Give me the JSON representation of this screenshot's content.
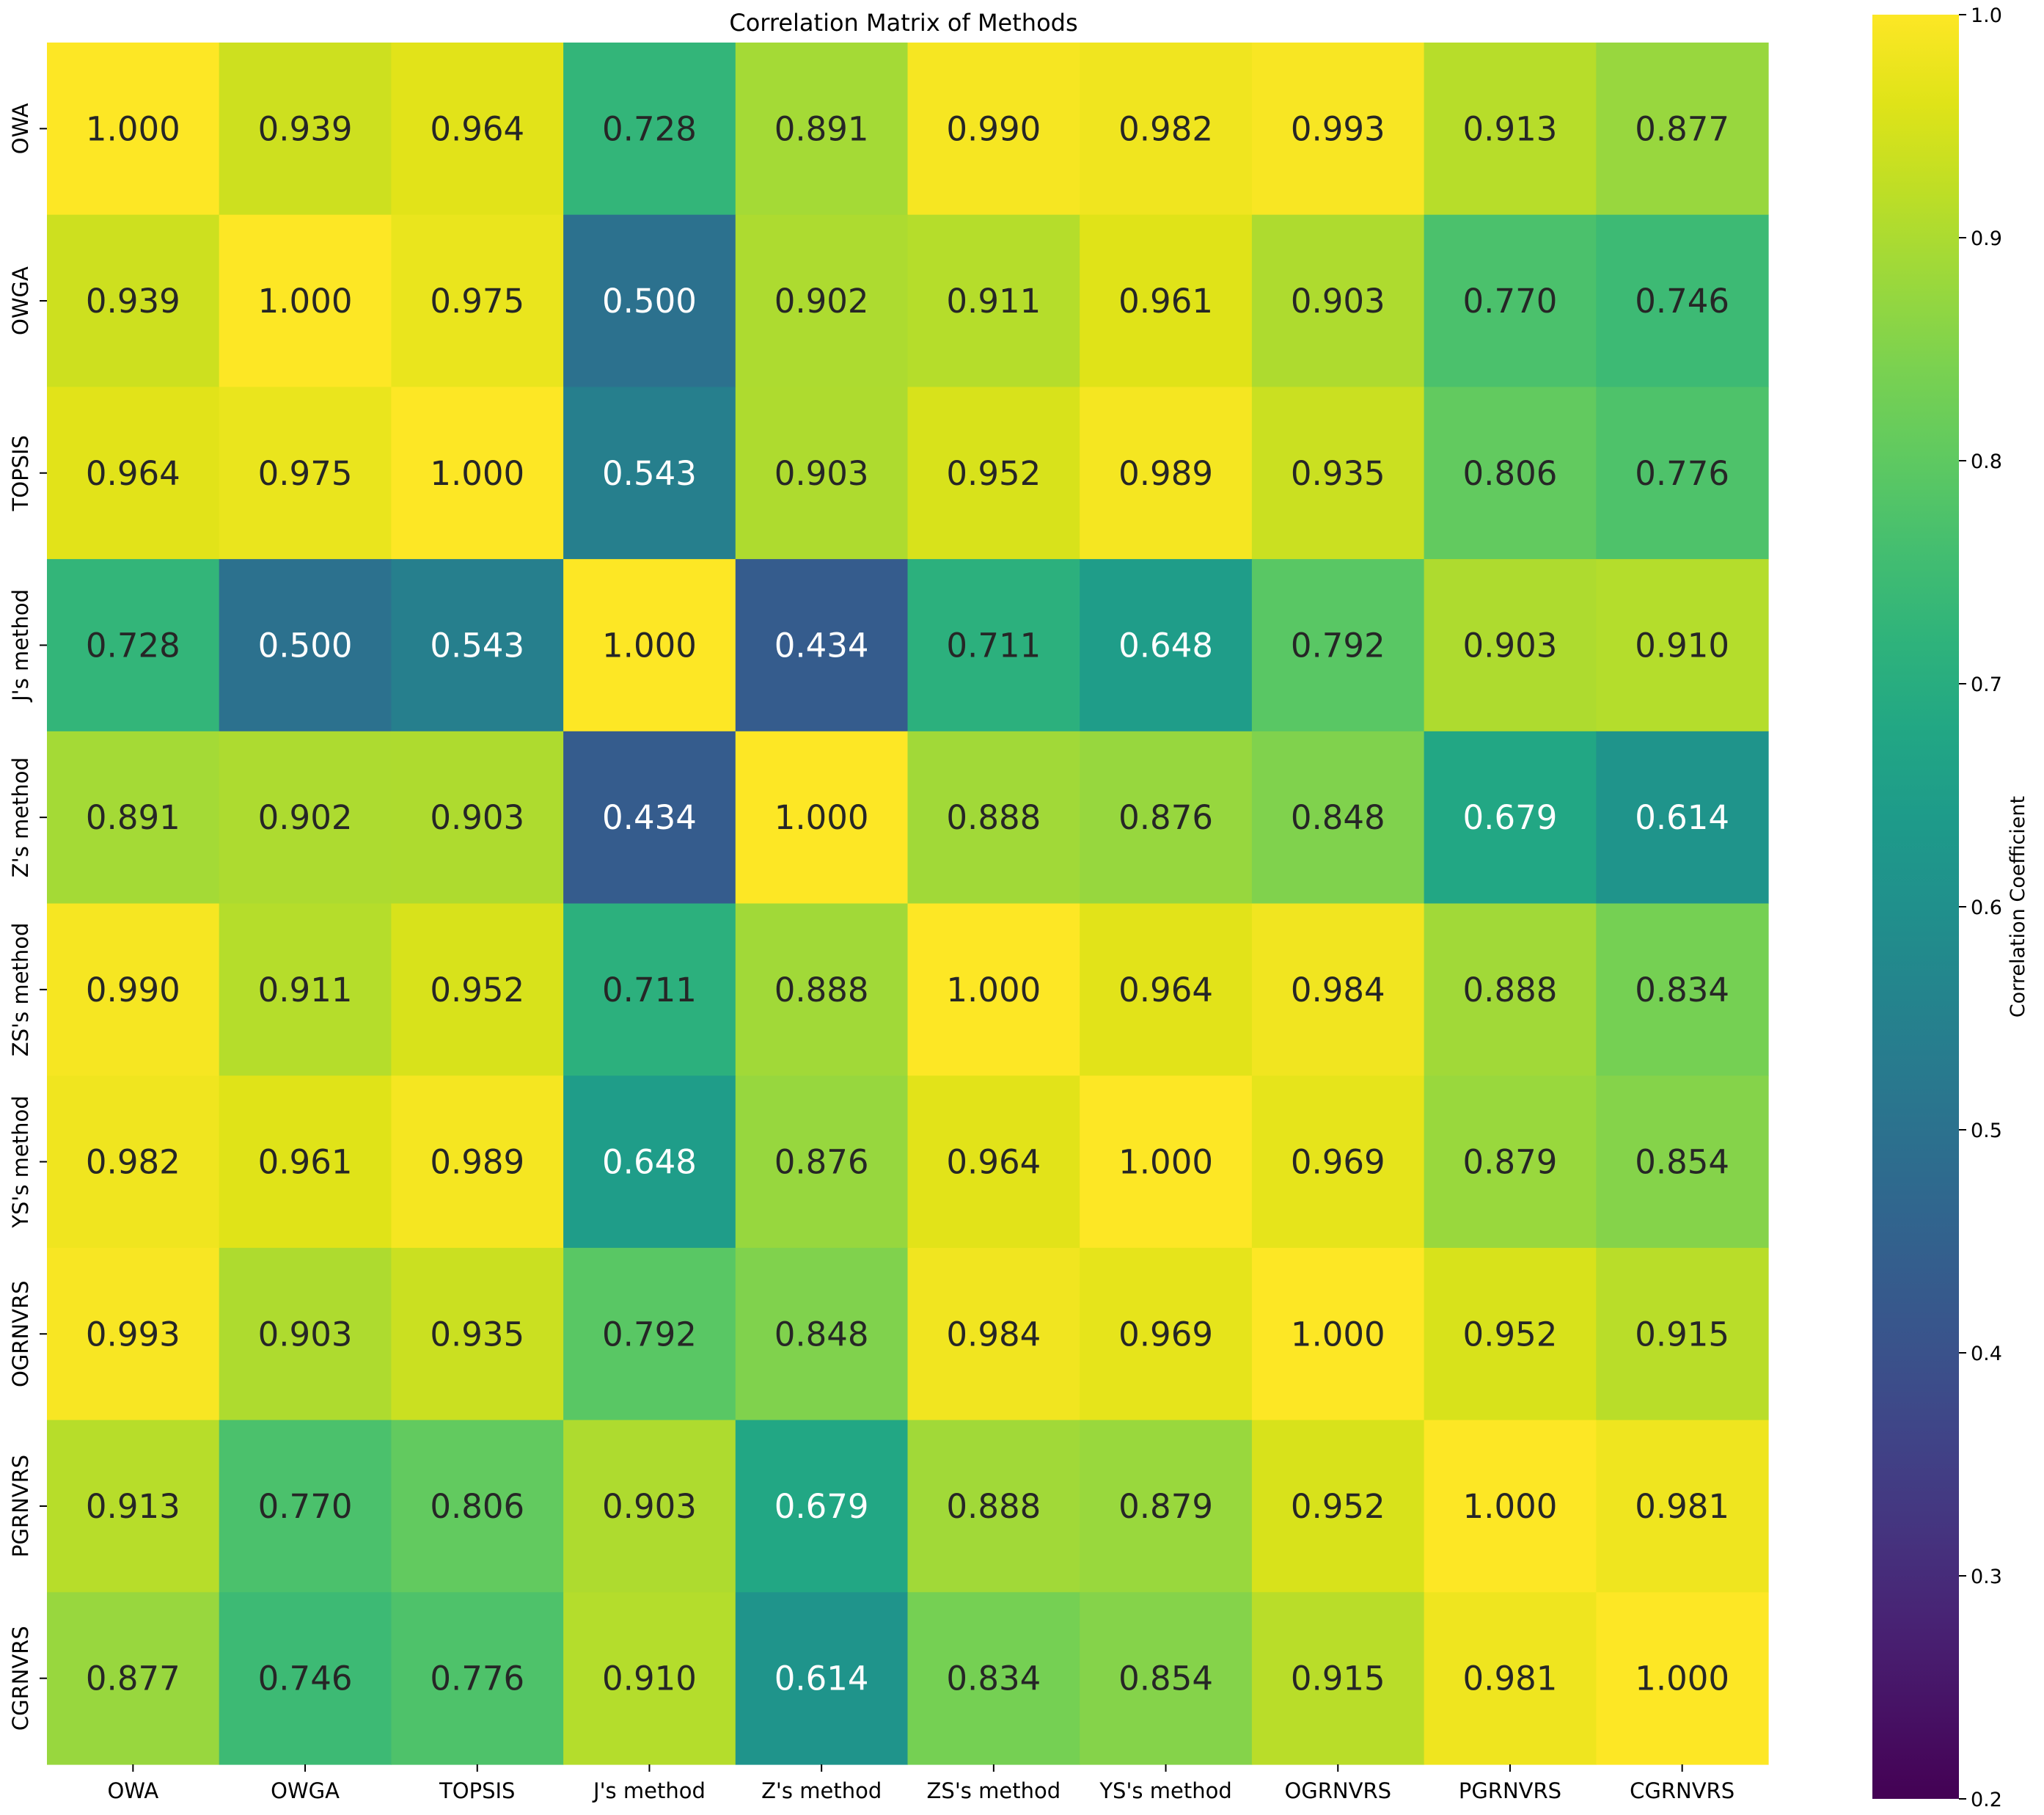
{
  "chart_data": {
    "type": "heatmap",
    "title": "Correlation Matrix of Methods",
    "x_labels": [
      "OWA",
      "OWGA",
      "TOPSIS",
      "J's method",
      "Z's method",
      "ZS's method",
      "YS's method",
      "OGRNVRS",
      "PGRNVRS",
      "CGRNVRS"
    ],
    "y_labels": [
      "OWA",
      "OWGA",
      "TOPSIS",
      "J's method",
      "Z's method",
      "ZS's method",
      "YS's method",
      "OGRNVRS",
      "PGRNVRS",
      "CGRNVRS"
    ],
    "values": [
      [
        1.0,
        0.939,
        0.964,
        0.728,
        0.891,
        0.99,
        0.982,
        0.993,
        0.913,
        0.877
      ],
      [
        0.939,
        1.0,
        0.975,
        0.5,
        0.902,
        0.911,
        0.961,
        0.903,
        0.77,
        0.746
      ],
      [
        0.964,
        0.975,
        1.0,
        0.543,
        0.903,
        0.952,
        0.989,
        0.935,
        0.806,
        0.776
      ],
      [
        0.728,
        0.5,
        0.543,
        1.0,
        0.434,
        0.711,
        0.648,
        0.792,
        0.903,
        0.91
      ],
      [
        0.891,
        0.902,
        0.903,
        0.434,
        1.0,
        0.888,
        0.876,
        0.848,
        0.679,
        0.614
      ],
      [
        0.99,
        0.911,
        0.952,
        0.711,
        0.888,
        1.0,
        0.964,
        0.984,
        0.888,
        0.834
      ],
      [
        0.982,
        0.961,
        0.989,
        0.648,
        0.876,
        0.964,
        1.0,
        0.969,
        0.879,
        0.854
      ],
      [
        0.993,
        0.903,
        0.935,
        0.792,
        0.848,
        0.984,
        0.969,
        1.0,
        0.952,
        0.915
      ],
      [
        0.913,
        0.77,
        0.806,
        0.903,
        0.679,
        0.888,
        0.879,
        0.952,
        1.0,
        0.981
      ],
      [
        0.877,
        0.746,
        0.776,
        0.91,
        0.614,
        0.834,
        0.854,
        0.915,
        0.981,
        1.0
      ]
    ],
    "cell_label_format": "0.000",
    "colormap": "viridis",
    "vmin": 0.2,
    "vmax": 1.0,
    "colorbar": {
      "label": "Correlation Coefficient",
      "ticks": [
        0.2,
        0.3,
        0.4,
        0.5,
        0.6,
        0.7,
        0.8,
        0.9,
        1.0
      ],
      "tick_labels": [
        "0.2",
        "0.3",
        "0.4",
        "0.5",
        "0.6",
        "0.7",
        "0.8",
        "0.9",
        "1.0"
      ],
      "position": "right"
    },
    "grid": false
  }
}
